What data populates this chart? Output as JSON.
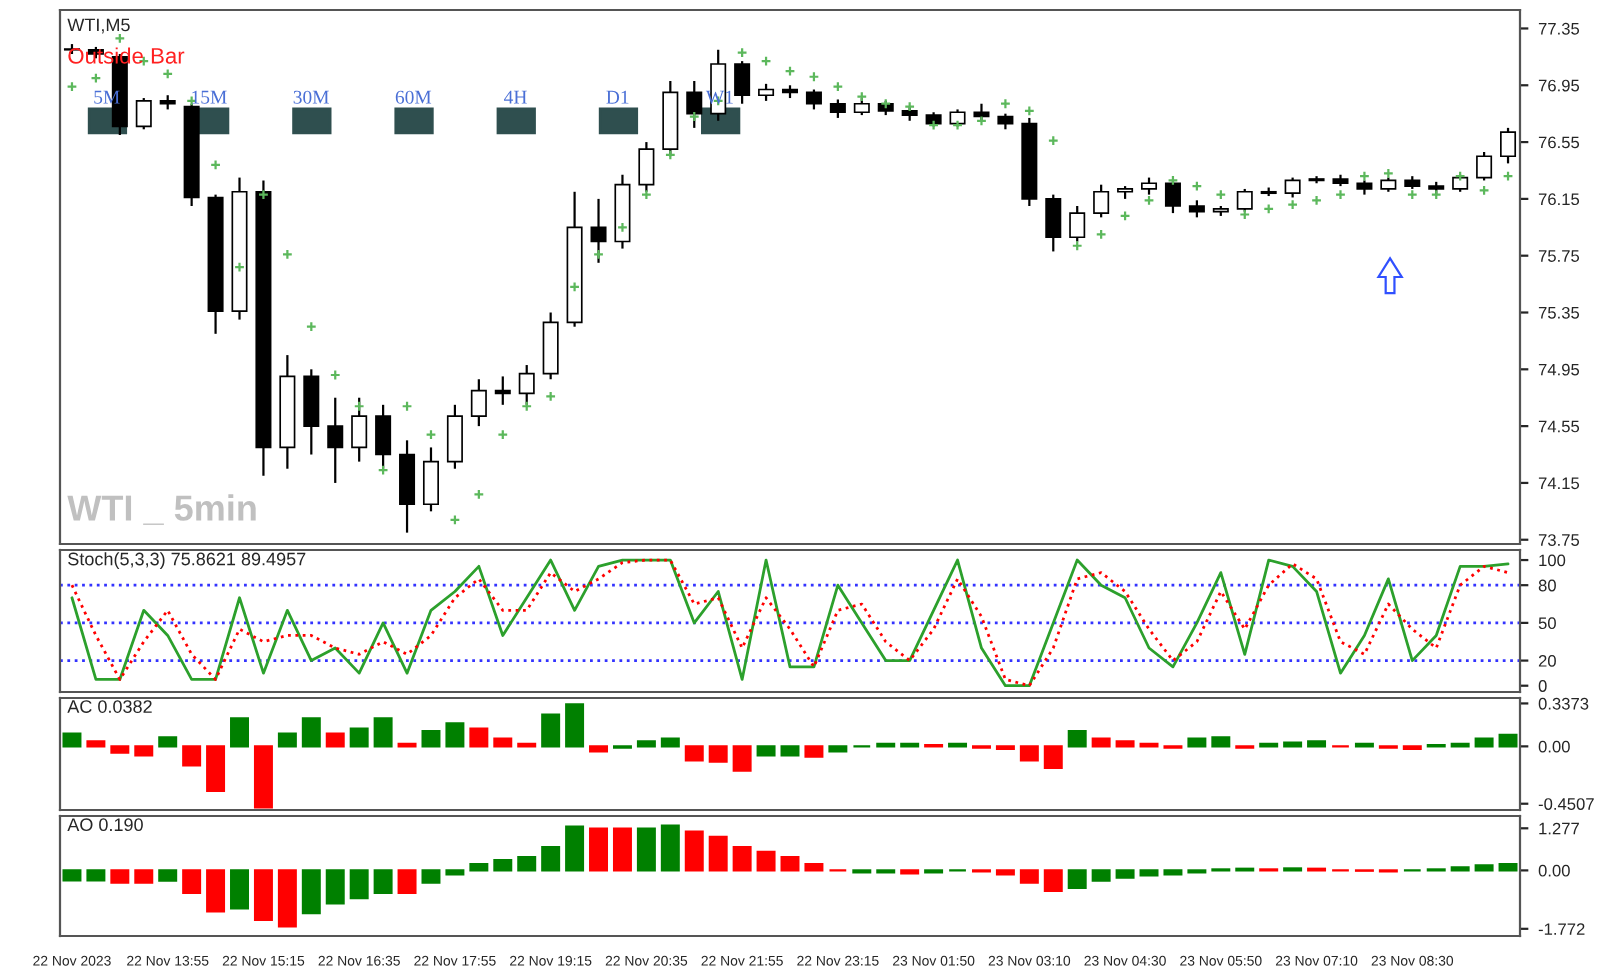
{
  "chart_data": [
    {
      "type": "candlestick",
      "title": "WTI,M5",
      "tick_labels": "y",
      "grid": false,
      "legend": false,
      "categories": [
        null,
        null,
        null,
        null,
        null,
        null,
        null,
        null,
        null,
        null,
        null,
        null,
        null,
        null,
        null,
        null,
        null,
        null,
        null,
        null,
        null,
        null,
        null,
        null,
        null,
        null,
        null,
        null,
        null,
        null,
        null,
        null,
        null,
        null,
        null,
        null,
        null,
        null,
        null,
        null,
        null,
        null,
        null,
        null,
        null,
        null,
        null,
        null,
        null,
        null,
        null,
        null,
        null,
        null,
        null,
        null,
        null,
        null,
        null,
        null,
        null
      ],
      "ohlc": [
        [
          77.2,
          77.24,
          77.17,
          77.2
        ],
        [
          77.2,
          77.22,
          77.14,
          77.17
        ],
        [
          77.15,
          77.17,
          76.6,
          76.66
        ],
        [
          76.66,
          76.86,
          76.64,
          76.84
        ],
        [
          76.84,
          76.88,
          76.78,
          76.82
        ],
        [
          76.8,
          76.82,
          76.1,
          76.16
        ],
        [
          76.16,
          76.18,
          75.2,
          75.36
        ],
        [
          75.36,
          76.3,
          75.3,
          76.2
        ],
        [
          76.2,
          76.28,
          74.2,
          74.4
        ],
        [
          74.4,
          75.05,
          74.25,
          74.9
        ],
        [
          74.9,
          74.95,
          74.35,
          74.55
        ],
        [
          74.55,
          74.75,
          74.15,
          74.4
        ],
        [
          74.4,
          74.75,
          74.3,
          74.62
        ],
        [
          74.62,
          74.7,
          74.25,
          74.35
        ],
        [
          74.35,
          74.45,
          73.8,
          74.0
        ],
        [
          74.0,
          74.4,
          73.95,
          74.3
        ],
        [
          74.3,
          74.7,
          74.25,
          74.62
        ],
        [
          74.62,
          74.88,
          74.55,
          74.8
        ],
        [
          74.8,
          74.9,
          74.7,
          74.78
        ],
        [
          74.78,
          74.98,
          74.7,
          74.92
        ],
        [
          74.92,
          75.35,
          74.88,
          75.28
        ],
        [
          75.28,
          76.2,
          75.25,
          75.95
        ],
        [
          75.95,
          76.15,
          75.7,
          75.85
        ],
        [
          75.85,
          76.32,
          75.8,
          76.25
        ],
        [
          76.25,
          76.55,
          76.2,
          76.5
        ],
        [
          76.5,
          76.98,
          76.45,
          76.9
        ],
        [
          76.9,
          76.98,
          76.65,
          76.75
        ],
        [
          76.75,
          77.2,
          76.7,
          77.1
        ],
        [
          77.1,
          77.12,
          76.82,
          76.88
        ],
        [
          76.88,
          76.96,
          76.84,
          76.92
        ],
        [
          76.92,
          76.95,
          76.86,
          76.9
        ],
        [
          76.9,
          76.92,
          76.78,
          76.82
        ],
        [
          76.82,
          76.85,
          76.72,
          76.76
        ],
        [
          76.76,
          76.86,
          76.74,
          76.82
        ],
        [
          76.82,
          76.84,
          76.74,
          76.77
        ],
        [
          76.77,
          76.8,
          76.7,
          76.74
        ],
        [
          76.74,
          76.76,
          76.66,
          76.68
        ],
        [
          76.68,
          76.78,
          76.66,
          76.76
        ],
        [
          76.76,
          76.82,
          76.7,
          76.73
        ],
        [
          76.73,
          76.75,
          76.64,
          76.68
        ],
        [
          76.68,
          76.72,
          76.1,
          76.15
        ],
        [
          76.15,
          76.18,
          75.78,
          75.88
        ],
        [
          75.88,
          76.1,
          75.85,
          76.05
        ],
        [
          76.05,
          76.25,
          76.02,
          76.2
        ],
        [
          76.2,
          76.24,
          76.15,
          76.22
        ],
        [
          76.22,
          76.3,
          76.18,
          76.26
        ],
        [
          76.26,
          76.28,
          76.05,
          76.1
        ],
        [
          76.1,
          76.14,
          76.02,
          76.06
        ],
        [
          76.06,
          76.1,
          76.03,
          76.08
        ],
        [
          76.08,
          76.22,
          76.06,
          76.2
        ],
        [
          76.2,
          76.23,
          76.17,
          76.19
        ],
        [
          76.19,
          76.3,
          76.16,
          76.28
        ],
        [
          76.28,
          76.31,
          76.26,
          76.29
        ],
        [
          76.29,
          76.32,
          76.24,
          76.26
        ],
        [
          76.26,
          76.28,
          76.18,
          76.22
        ],
        [
          76.22,
          76.3,
          76.2,
          76.28
        ],
        [
          76.28,
          76.31,
          76.22,
          76.24
        ],
        [
          76.24,
          76.27,
          76.18,
          76.22
        ],
        [
          76.22,
          76.32,
          76.2,
          76.3
        ],
        [
          76.3,
          76.48,
          76.28,
          76.45
        ],
        [
          76.45,
          76.65,
          76.4,
          76.62
        ]
      ],
      "series": [
        {
          "type": "scatter",
          "marker": "cross",
          "color": "#5cb85c",
          "values": [
            76.94,
            77.0,
            77.28,
            77.12,
            77.03,
            76.84,
            76.39,
            75.67,
            76.18,
            75.76,
            75.25,
            74.91,
            74.69,
            74.24,
            74.69,
            74.49,
            73.89,
            74.07,
            74.49,
            74.69,
            74.76,
            75.53,
            75.76,
            75.95,
            76.18,
            76.46,
            76.73,
            76.84,
            77.18,
            77.12,
            77.05,
            77.01,
            76.94,
            76.87,
            76.82,
            76.8,
            76.67,
            76.67,
            76.7,
            76.82,
            76.77,
            76.56,
            75.82,
            75.9,
            76.03,
            76.14,
            76.28,
            76.24,
            76.18,
            76.04,
            76.08,
            76.11,
            76.14,
            76.18,
            76.31,
            76.33,
            76.18,
            76.18,
            76.31,
            76.21,
            76.31
          ]
        }
      ],
      "ylim": [
        73.72,
        77.48
      ],
      "yticks": [
        77.35,
        76.95,
        76.55,
        76.15,
        75.75,
        75.35,
        74.95,
        74.55,
        74.15,
        73.75
      ],
      "annotations": [
        "Outside Bar",
        "5M",
        "15M",
        "30M",
        "60M",
        "4H",
        "D1",
        "W1",
        "WTI _ 5min"
      ]
    },
    {
      "type": "line",
      "title": "Stoch(5,3,3) 75.8621 89.4957",
      "tick_labels": "y",
      "grid": false,
      "legend": false,
      "marker": "none",
      "categories": [
        null,
        null,
        null,
        null,
        null,
        null,
        null,
        null,
        null,
        null,
        null,
        null,
        null,
        null,
        null,
        null,
        null,
        null,
        null,
        null,
        null,
        null,
        null,
        null,
        null,
        null,
        null,
        null,
        null,
        null,
        null,
        null,
        null,
        null,
        null,
        null,
        null,
        null,
        null,
        null,
        null,
        null,
        null,
        null,
        null,
        null,
        null,
        null,
        null,
        null,
        null,
        null,
        null,
        null,
        null,
        null,
        null,
        null,
        null,
        null,
        null
      ],
      "series": [
        {
          "color": "#2ca02c",
          "line_style": "solid",
          "values": [
            70,
            5,
            5,
            60,
            40,
            5,
            5,
            70,
            10,
            60,
            20,
            30,
            10,
            50,
            10,
            60,
            75,
            95,
            40,
            70,
            100,
            60,
            95,
            100,
            100,
            100,
            50,
            75,
            5,
            100,
            15,
            15,
            80,
            50,
            20,
            20,
            60,
            100,
            30,
            0,
            0,
            50,
            100,
            80,
            70,
            30,
            15,
            50,
            90,
            25,
            100,
            95,
            75,
            10,
            40,
            85,
            20,
            40,
            95,
            95,
            97
          ]
        },
        {
          "color": "#ff0000",
          "line_style": "dotted",
          "values": [
            80,
            40,
            5,
            35,
            60,
            25,
            5,
            45,
            35,
            40,
            40,
            30,
            25,
            35,
            25,
            40,
            70,
            85,
            60,
            60,
            90,
            75,
            85,
            98,
            100,
            100,
            65,
            70,
            30,
            70,
            45,
            15,
            60,
            65,
            35,
            20,
            45,
            85,
            55,
            5,
            0,
            30,
            85,
            90,
            75,
            45,
            20,
            35,
            75,
            45,
            80,
            97,
            85,
            35,
            25,
            65,
            45,
            30,
            80,
            95,
            90
          ]
        }
      ],
      "ylim": [
        -5,
        108
      ],
      "yticks": [
        0,
        20,
        50,
        80,
        100
      ],
      "ref_lines": [
        {
          "axis": "y",
          "value": 20,
          "color": "#3333ff",
          "line_style": "dotted"
        },
        {
          "axis": "y",
          "value": 50,
          "color": "#3333ff",
          "line_style": "dotted"
        },
        {
          "axis": "y",
          "value": 80,
          "color": "#3333ff",
          "line_style": "dotted"
        }
      ]
    },
    {
      "type": "bar",
      "title": "AC 0.0382",
      "tick_labels": "y",
      "grid": false,
      "legend": false,
      "categories": [
        null,
        null,
        null,
        null,
        null,
        null,
        null,
        null,
        null,
        null,
        null,
        null,
        null,
        null,
        null,
        null,
        null,
        null,
        null,
        null,
        null,
        null,
        null,
        null,
        null,
        null,
        null,
        null,
        null,
        null,
        null,
        null,
        null,
        null,
        null,
        null,
        null,
        null,
        null,
        null,
        null,
        null,
        null,
        null,
        null,
        null,
        null,
        null,
        null,
        null,
        null,
        null,
        null,
        null,
        null,
        null,
        null,
        null,
        null,
        null,
        null
      ],
      "values": [
        0.1,
        0.04,
        -0.05,
        -0.07,
        0.07,
        -0.15,
        -0.35,
        0.22,
        -0.48,
        0.1,
        0.22,
        0.1,
        0.14,
        0.22,
        0.02,
        0.12,
        0.18,
        0.14,
        0.06,
        0.02,
        0.25,
        0.33,
        -0.04,
        -0.01,
        0.04,
        0.06,
        -0.11,
        -0.12,
        -0.19,
        -0.07,
        -0.07,
        -0.08,
        -0.04,
        0.0,
        0.02,
        0.02,
        0.01,
        0.02,
        -0.01,
        -0.02,
        -0.11,
        -0.17,
        0.12,
        0.06,
        0.04,
        0.02,
        -0.01,
        0.06,
        0.07,
        -0.01,
        0.02,
        0.03,
        0.04,
        0.0,
        0.02,
        -0.01,
        -0.02,
        0.01,
        0.02,
        0.06,
        0.09
      ],
      "colors": [
        "#008000",
        "#ff0000",
        "#ff0000",
        "#ff0000",
        "#008000",
        "#ff0000",
        "#ff0000",
        "#008000",
        "#ff0000",
        "#008000",
        "#008000",
        "#ff0000",
        "#008000",
        "#008000",
        "#ff0000",
        "#008000",
        "#008000",
        "#ff0000",
        "#ff0000",
        "#ff0000",
        "#008000",
        "#008000",
        "#ff0000",
        "#008000",
        "#008000",
        "#008000",
        "#ff0000",
        "#ff0000",
        "#ff0000",
        "#008000",
        "#008000",
        "#ff0000",
        "#008000",
        "#008000",
        "#008000",
        "#008000",
        "#ff0000",
        "#008000",
        "#ff0000",
        "#ff0000",
        "#ff0000",
        "#ff0000",
        "#008000",
        "#ff0000",
        "#ff0000",
        "#ff0000",
        "#ff0000",
        "#008000",
        "#008000",
        "#ff0000",
        "#008000",
        "#008000",
        "#008000",
        "#ff0000",
        "#008000",
        "#ff0000",
        "#ff0000",
        "#008000",
        "#008000",
        "#008000",
        "#008000"
      ],
      "ylim": [
        -0.5,
        0.38
      ],
      "yticks": [
        0.3373,
        {
          "value": 0,
          "label": "0.00"
        },
        -0.4507
      ]
    },
    {
      "type": "bar",
      "title": "AO 0.190",
      "grid": false,
      "legend": false,
      "categories": [
        "22 Nov 2023",
        null,
        null,
        null,
        "22 Nov 13:55",
        null,
        null,
        null,
        "22 Nov 15:15",
        null,
        null,
        null,
        "22 Nov 16:35",
        null,
        null,
        null,
        "22 Nov 17:55",
        null,
        null,
        null,
        "22 Nov 19:15",
        null,
        null,
        null,
        "22 Nov 20:35",
        null,
        null,
        null,
        "22 Nov 21:55",
        null,
        null,
        null,
        "22 Nov 23:15",
        null,
        null,
        null,
        "23 Nov 01:50",
        null,
        null,
        null,
        "23 Nov 03:10",
        null,
        null,
        null,
        "23 Nov 04:30",
        null,
        null,
        null,
        "23 Nov 05:50",
        null,
        null,
        null,
        "23 Nov 07:10",
        null,
        null,
        null,
        "23 Nov 08:30",
        null,
        null,
        null,
        null
      ],
      "values": [
        -0.3,
        -0.3,
        -0.37,
        -0.37,
        -0.31,
        -0.68,
        -1.24,
        -1.15,
        -1.5,
        -1.7,
        -1.3,
        -1.0,
        -0.84,
        -0.68,
        -0.68,
        -0.37,
        -0.12,
        0.19,
        0.31,
        0.4,
        0.71,
        1.33,
        1.27,
        1.27,
        1.27,
        1.36,
        1.18,
        1.02,
        0.71,
        0.56,
        0.4,
        0.19,
        0.0,
        -0.06,
        -0.06,
        -0.09,
        -0.06,
        0.0,
        -0.03,
        -0.12,
        -0.37,
        -0.62,
        -0.53,
        -0.31,
        -0.22,
        -0.15,
        -0.12,
        -0.06,
        0.03,
        0.05,
        0.03,
        0.06,
        0.05,
        0.0,
        -0.01,
        -0.03,
        0.0,
        0.03,
        0.09,
        0.15,
        0.19
      ],
      "colors": [
        "#008000",
        "#008000",
        "#ff0000",
        "#ff0000",
        "#008000",
        "#ff0000",
        "#ff0000",
        "#008000",
        "#ff0000",
        "#ff0000",
        "#008000",
        "#008000",
        "#008000",
        "#008000",
        "#ff0000",
        "#008000",
        "#008000",
        "#008000",
        "#008000",
        "#008000",
        "#008000",
        "#008000",
        "#ff0000",
        "#ff0000",
        "#008000",
        "#008000",
        "#ff0000",
        "#ff0000",
        "#ff0000",
        "#ff0000",
        "#ff0000",
        "#ff0000",
        "#ff0000",
        "#008000",
        "#008000",
        "#ff0000",
        "#008000",
        "#008000",
        "#ff0000",
        "#ff0000",
        "#ff0000",
        "#ff0000",
        "#008000",
        "#008000",
        "#008000",
        "#008000",
        "#008000",
        "#008000",
        "#008000",
        "#008000",
        "#ff0000",
        "#008000",
        "#ff0000",
        "#ff0000",
        "#ff0000",
        "#ff0000",
        "#008000",
        "#008000",
        "#008000",
        "#008000",
        "#008000"
      ],
      "ylim": [
        -1.99,
        1.65
      ],
      "yticks": [
        1.277,
        {
          "value": 0,
          "label": "0.00"
        },
        -1.772
      ]
    }
  ]
}
